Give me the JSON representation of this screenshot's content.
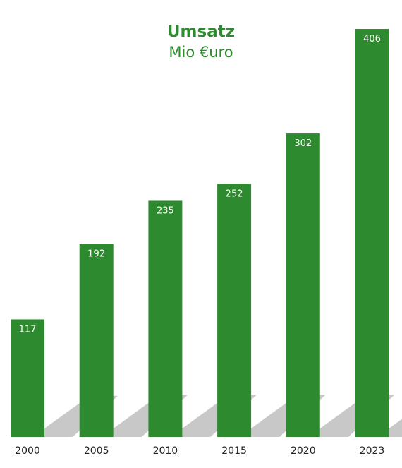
{
  "chart_data": {
    "type": "bar",
    "title": "Umsatz",
    "subtitle": "Mio €uro",
    "categories": [
      "2000",
      "2005",
      "2010",
      "2015",
      "2020",
      "2023"
    ],
    "values": [
      117,
      192,
      235,
      252,
      302,
      406
    ],
    "ylim": [
      0,
      420
    ],
    "grid": false,
    "legend": "none",
    "bar_color": "#2e8a2e",
    "label_color": "#ffffff"
  }
}
